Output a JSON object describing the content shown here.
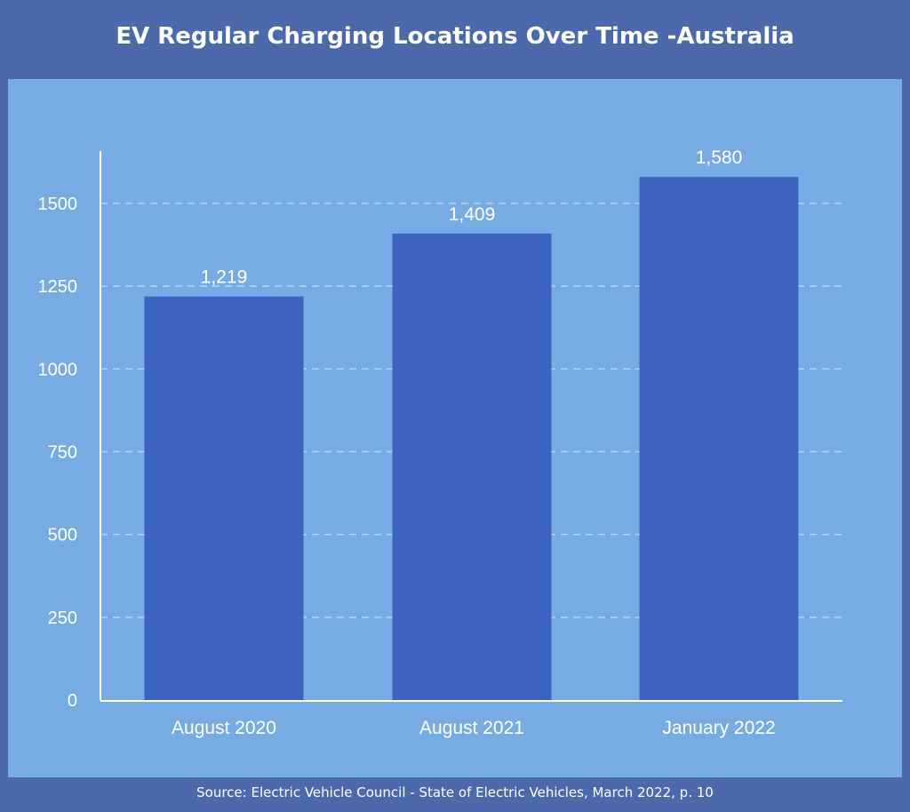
{
  "chart_data": {
    "type": "bar",
    "title": "EV Regular Charging Locations Over Time -Australia",
    "categories": [
      "August 2020",
      "August 2021",
      "January 2022"
    ],
    "values": [
      1219,
      1409,
      1580
    ],
    "data_labels": [
      "1,219",
      "1,409",
      "1,580"
    ],
    "xlabel": "",
    "ylabel": "",
    "ylim": [
      0,
      1660
    ],
    "yticks": [
      0,
      250,
      500,
      750,
      1000,
      1250,
      1500
    ],
    "grid": "horizontal dashed",
    "legend": "none",
    "colors": {
      "bar": "#3d64c1",
      "panel": "#76abe3",
      "background": "#4c69ad",
      "text": "#ffffff"
    }
  },
  "source": "Source: Electric Vehicle Council - State of Electric Vehicles, March 2022, p. 10"
}
